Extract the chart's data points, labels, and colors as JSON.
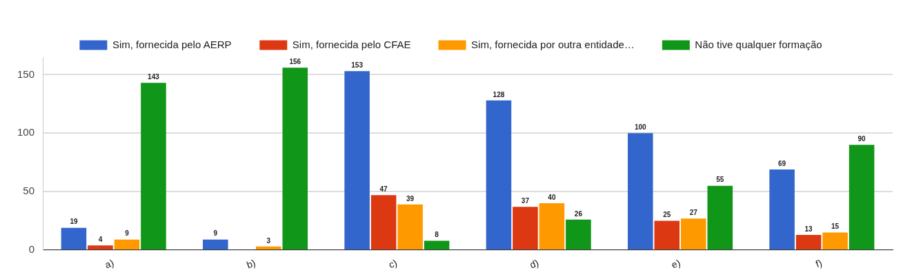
{
  "chart_data": {
    "type": "bar",
    "categories": [
      "a)",
      "b)",
      "c)",
      "d)",
      "e)",
      "f)"
    ],
    "series": [
      {
        "name": "Sim, fornecida pelo AERP",
        "color": "#3366cc",
        "values": [
          19,
          9,
          153,
          128,
          100,
          69
        ],
        "value_labels": [
          "19",
          "9",
          "153",
          "128",
          "100",
          "69"
        ]
      },
      {
        "name": "Sim, fornecida pelo CFAE",
        "color": "#dc3912",
        "values": [
          4,
          0,
          47,
          37,
          25,
          13
        ],
        "value_labels": [
          "4",
          null,
          "47",
          "37",
          "25",
          "13"
        ]
      },
      {
        "name": "Sim, fornecida por outra entidade…",
        "color": "#ff9900",
        "values": [
          9,
          3,
          39,
          40,
          27,
          15
        ],
        "value_labels": [
          "9",
          "3",
          "39",
          "40",
          "27",
          "15"
        ]
      },
      {
        "name": "Não tive qualquer formação",
        "color": "#109618",
        "values": [
          143,
          156,
          8,
          26,
          55,
          90
        ],
        "value_labels": [
          "143",
          "156",
          "8",
          "26",
          "55",
          "90"
        ]
      }
    ],
    "ylim": [
      0,
      165
    ],
    "yticks": [
      0,
      50,
      100,
      150
    ],
    "grid": "y",
    "legend": "top"
  }
}
